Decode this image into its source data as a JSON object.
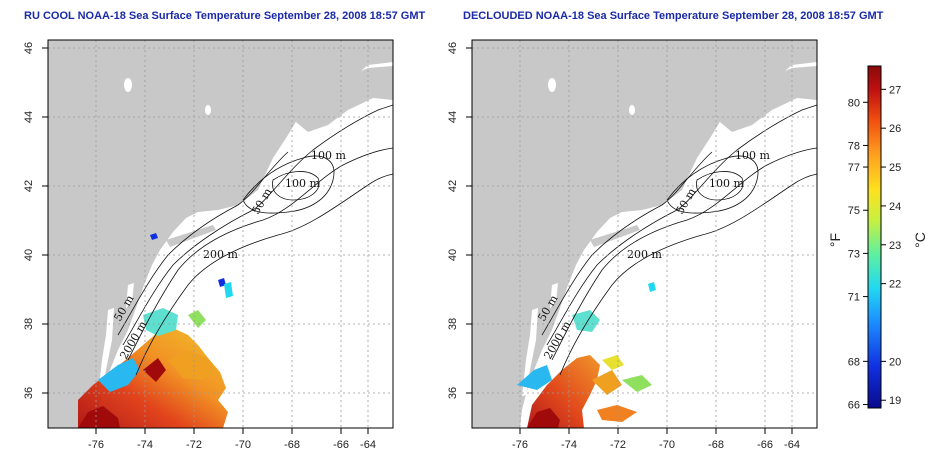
{
  "panels": [
    {
      "title": "RU COOL NOAA-18 Sea Surface Temperature September 28, 2008 18:57 GMT",
      "x_ticks": [
        "-76",
        "-74",
        "-72",
        "-70",
        "-68",
        "-66",
        "-64"
      ],
      "y_ticks": [
        "46",
        "44",
        "42",
        "40",
        "38",
        "36"
      ],
      "contour_labels": [
        "100 m",
        "100 m",
        "50 m",
        "200 m",
        "50 m",
        "2000 m"
      ]
    },
    {
      "title": "DECLOUDED NOAA-18 Sea Surface Temperature September 28, 2008 18:57 GMT",
      "x_ticks": [
        "-76",
        "-74",
        "-72",
        "-70",
        "-68",
        "-66",
        "-64"
      ],
      "y_ticks": [
        "46",
        "44",
        "42",
        "40",
        "38",
        "36"
      ],
      "contour_labels": [
        "100 m",
        "100 m",
        "50 m",
        "200 m",
        "50 m",
        "2000 m"
      ]
    }
  ],
  "colorbar": {
    "fahrenheit_label": "°F",
    "celsius_label": "°C",
    "fahrenheit_ticks": [
      "80",
      "78",
      "77",
      "75",
      "73",
      "71",
      "68",
      "66"
    ],
    "celsius_ticks": [
      "27",
      "26",
      "25",
      "24",
      "23",
      "22",
      "20",
      "19"
    ],
    "fahrenheit_values": [
      80,
      78,
      77,
      75,
      73,
      71,
      68,
      66
    ],
    "celsius_values": [
      27,
      26,
      25,
      24,
      23,
      22,
      20,
      19
    ],
    "range_c": [
      18.8,
      27.6
    ],
    "colors": [
      "#0a0a8c",
      "#1030e0",
      "#1c8cff",
      "#22d8f0",
      "#5ff0a0",
      "#c8f040",
      "#ffe020",
      "#ffa020",
      "#f05010",
      "#c01010",
      "#8a0a0a"
    ]
  },
  "map_extent": {
    "lon": [
      -77.2,
      -62.9
    ],
    "lat": [
      35.0,
      46.0
    ]
  },
  "colors": {
    "land": "#c8c8c8",
    "title": "#1a2aa8",
    "grid": "#9a9a9a"
  }
}
